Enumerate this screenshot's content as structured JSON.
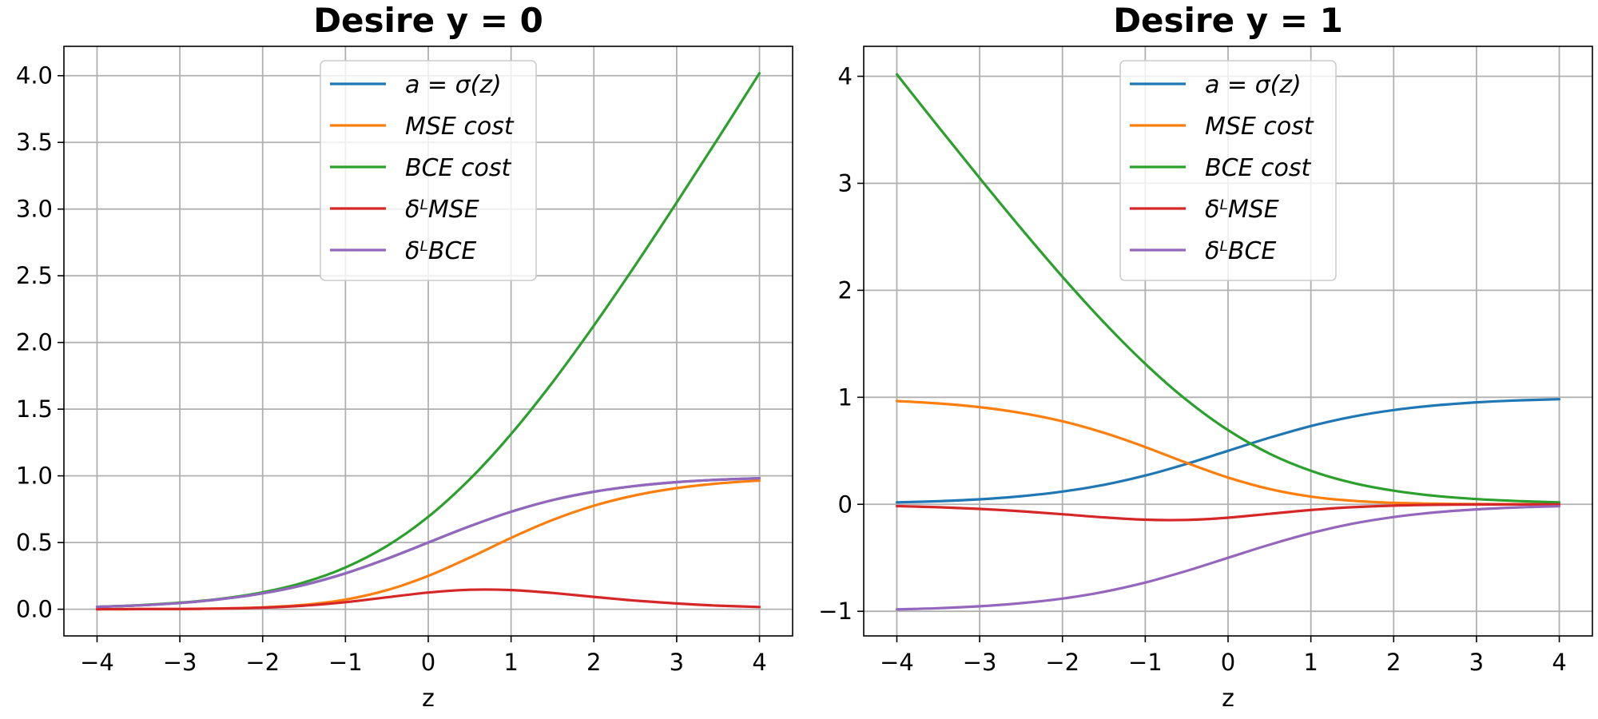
{
  "chart_data": [
    {
      "type": "line",
      "title": "Desire y = 0",
      "xlabel": "z",
      "ylabel": "",
      "xlim": [
        -4.4,
        4.4
      ],
      "ylim": [
        -0.2,
        4.22
      ],
      "xticks": [
        -4,
        -3,
        -2,
        -1,
        0,
        1,
        2,
        3,
        4
      ],
      "xtick_labels": [
        "−4",
        "−3",
        "−2",
        "−1",
        "0",
        "1",
        "2",
        "3",
        "4"
      ],
      "yticks": [
        0.0,
        0.5,
        1.0,
        1.5,
        2.0,
        2.5,
        3.0,
        3.5,
        4.0
      ],
      "ytick_labels": [
        "0.0",
        "0.5",
        "1.0",
        "1.5",
        "2.0",
        "2.5",
        "3.0",
        "3.5",
        "4.0"
      ],
      "grid": true,
      "legend_position": "top-center",
      "x": [
        -4,
        -3.5,
        -3,
        -2.5,
        -2,
        -1.5,
        -1,
        -0.5,
        0,
        0.5,
        1,
        1.5,
        2,
        2.5,
        3,
        3.5,
        4
      ],
      "series": [
        {
          "name": "a = σ(z)",
          "color": "#1f77b4",
          "values": [
            0.018,
            0.029,
            0.047,
            0.076,
            0.119,
            0.182,
            0.269,
            0.378,
            0.5,
            0.622,
            0.731,
            0.818,
            0.881,
            0.924,
            0.953,
            0.971,
            0.982
          ]
        },
        {
          "name": "MSE cost",
          "color": "#ff7f0e",
          "values": [
            0.0,
            0.001,
            0.002,
            0.006,
            0.014,
            0.033,
            0.072,
            0.143,
            0.25,
            0.387,
            0.535,
            0.669,
            0.776,
            0.854,
            0.908,
            0.943,
            0.965
          ]
        },
        {
          "name": "BCE cost",
          "color": "#2ca02c",
          "values": [
            0.018,
            0.03,
            0.049,
            0.079,
            0.127,
            0.201,
            0.313,
            0.474,
            0.693,
            0.974,
            1.313,
            1.701,
            2.127,
            2.579,
            3.049,
            3.53,
            4.018
          ]
        },
        {
          "name": "δᴸMSE",
          "color": "#d62728",
          "values": [
            0.0,
            0.001,
            0.002,
            0.005,
            0.012,
            0.027,
            0.053,
            0.089,
            0.125,
            0.146,
            0.144,
            0.122,
            0.093,
            0.065,
            0.043,
            0.027,
            0.017
          ]
        },
        {
          "name": "δᴸBCE",
          "color": "#9467bd",
          "values": [
            0.018,
            0.029,
            0.047,
            0.076,
            0.119,
            0.182,
            0.269,
            0.378,
            0.5,
            0.622,
            0.731,
            0.818,
            0.881,
            0.924,
            0.953,
            0.971,
            0.982
          ]
        }
      ]
    },
    {
      "type": "line",
      "title": "Desire y = 1",
      "xlabel": "z",
      "ylabel": "",
      "xlim": [
        -4.4,
        4.4
      ],
      "ylim": [
        -1.23,
        4.28
      ],
      "xticks": [
        -4,
        -3,
        -2,
        -1,
        0,
        1,
        2,
        3,
        4
      ],
      "xtick_labels": [
        "−4",
        "−3",
        "−2",
        "−1",
        "0",
        "1",
        "2",
        "3",
        "4"
      ],
      "yticks": [
        -1,
        0,
        1,
        2,
        3,
        4
      ],
      "ytick_labels": [
        "−1",
        "0",
        "1",
        "2",
        "3",
        "4"
      ],
      "grid": true,
      "legend_position": "top-center",
      "x": [
        -4,
        -3.5,
        -3,
        -2.5,
        -2,
        -1.5,
        -1,
        -0.5,
        0,
        0.5,
        1,
        1.5,
        2,
        2.5,
        3,
        3.5,
        4
      ],
      "series": [
        {
          "name": "a = σ(z)",
          "color": "#1f77b4",
          "values": [
            0.018,
            0.029,
            0.047,
            0.076,
            0.119,
            0.182,
            0.269,
            0.378,
            0.5,
            0.622,
            0.731,
            0.818,
            0.881,
            0.924,
            0.953,
            0.971,
            0.982
          ]
        },
        {
          "name": "MSE cost",
          "color": "#ff7f0e",
          "values": [
            0.965,
            0.943,
            0.908,
            0.854,
            0.776,
            0.669,
            0.535,
            0.387,
            0.25,
            0.143,
            0.072,
            0.033,
            0.014,
            0.006,
            0.002,
            0.001,
            0.0
          ]
        },
        {
          "name": "BCE cost",
          "color": "#2ca02c",
          "values": [
            4.018,
            3.53,
            3.049,
            2.579,
            2.127,
            1.701,
            1.313,
            0.974,
            0.693,
            0.474,
            0.313,
            0.201,
            0.127,
            0.079,
            0.049,
            0.03,
            0.018
          ]
        },
        {
          "name": "δᴸMSE",
          "color": "#d62728",
          "values": [
            -0.017,
            -0.027,
            -0.043,
            -0.065,
            -0.093,
            -0.122,
            -0.144,
            -0.146,
            -0.125,
            -0.089,
            -0.053,
            -0.027,
            -0.012,
            -0.005,
            -0.002,
            -0.001,
            0.0
          ]
        },
        {
          "name": "δᴸBCE",
          "color": "#9467bd",
          "values": [
            -0.982,
            -0.971,
            -0.953,
            -0.924,
            -0.881,
            -0.818,
            -0.731,
            -0.622,
            -0.5,
            -0.378,
            -0.269,
            -0.182,
            -0.119,
            -0.076,
            -0.047,
            -0.029,
            -0.018
          ]
        }
      ]
    }
  ]
}
